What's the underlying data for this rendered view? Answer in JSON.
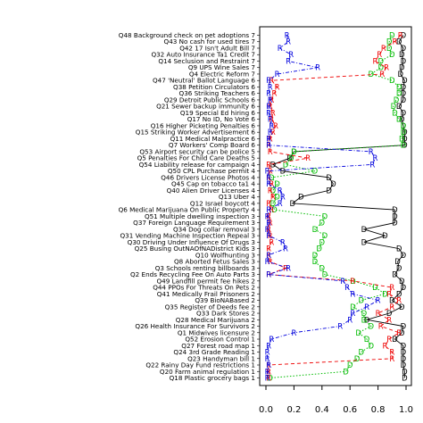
{
  "chart_data": {
    "type": "line",
    "title": "",
    "xlabel": "",
    "ylabel": "",
    "xlim": [
      0,
      1
    ],
    "x_ticks": [
      "0.0",
      "0.2",
      "0.4",
      "0.6",
      "0.8",
      "1.0"
    ],
    "x_tick_values": [
      0,
      0.2,
      0.4,
      0.6,
      0.8,
      1.0
    ],
    "grid": false,
    "legend": "none",
    "categories": [
      "Q48 Background check on pet adoptions 7",
      "Q43 No cash for used tires 7",
      "Q42 17 Isn't Adult Bill 7",
      "Q32 Auto Insurance Ta1 Credit 7",
      "Q14 Seclusion and Restraint 7",
      "Q9 UPS Wine Sales 7",
      "Q4 Electric Reform 7",
      "Q47 'Neutral' Ballot Language 6",
      "Q38 Petition Circulators 6",
      "Q36 Striking Teachers 6",
      "Q29 Detroit Public Schools 6",
      "Q21 Sewer backup immunity 6",
      "Q19 Special Ed hiring 6",
      "Q17 No ID, No Vote 6",
      "Q16 Higher Picketing Penalties 6",
      "Q15 Striking Worker Advertisement 6",
      "Q11 Medical Malpractice 6",
      "Q7 Workers' Comp Board 6",
      "Q53 Airport security can be police 5",
      "Q5 Penalties For Child Care Deaths 5",
      "Q54 Liability release for campaign 4",
      "Q50 CPL Purchase permit 4",
      "Q46 Drivers License Photos 4",
      "Q45 Cap on tobacco ta1 4",
      "Q40 Alien Driver Licenses 4",
      "Q13 Uber 4",
      "Q12 Israel boycott 4",
      "Q6 Medical Marijuana On Public Property 4",
      "Q51 Multiple dwelling inspection 3",
      "Q37 Foreign Language Requirement 3",
      "Q34 Dog collar removal 3",
      "Q31 Vending Machine Inspection Repeal 3",
      "Q30 Driving Under Influence Of Drugs 3",
      "Q25 Busing OutNAOfNADistrict Kids 3",
      "Q10 Wolfhunting 3",
      "Q8 Aborted Fetus Sales 3",
      "Q3 Schools renting billboards 3",
      "Q2 Ends Recycling Fee On Auto Parts 3",
      "Q49 Landfill permit fee hikes 2",
      "Q44 PPOs For Threats On Pets 2",
      "Q41 Medically Frail Prisoners 2",
      "Q39 BioNABased 2",
      "Q35 Register of Deeds fee 2",
      "Q33 Dark Stores 2",
      "Q28 Medical Marijuana 2",
      "Q26 Health Insurance For Survivors 2",
      "Q1 Midwives licensure 2",
      "Q52 Erosion Control 1",
      "Q27 Forest road map 1",
      "Q24 3rd Grade Reading 1",
      "Q23 Handyman bill 1",
      "Q22 Rainy Day Fund restrictions 1",
      "Q20 Farm animal regulation 1",
      "Q18 Plastic grocery bags 1"
    ],
    "series": [
      {
        "name": "",
        "marker": "D",
        "color": "#000000",
        "values": [
          0.98,
          0.95,
          0.98,
          0.97,
          0.98,
          0.97,
          0.96,
          0.99,
          0.98,
          0.98,
          0.98,
          0.95,
          0.98,
          0.97,
          0.98,
          0.99,
          0.99,
          0.99,
          0.2,
          0.17,
          0.05,
          0.12,
          0.45,
          0.48,
          0.45,
          0.25,
          0.19,
          0.92,
          0.92,
          0.92,
          0.7,
          0.85,
          0.7,
          0.95,
          0.98,
          0.94,
          0.95,
          0.92,
          0.97,
          0.98,
          0.95,
          0.9,
          0.97,
          0.88,
          0.72,
          0.98,
          0.97,
          0.92,
          0.98,
          0.98,
          0.98,
          0.98,
          0.99,
          0.99
        ]
      },
      {
        "name": "",
        "marker": "D",
        "color": "#00bb00",
        "values": [
          0.9,
          0.88,
          0.88,
          0.9,
          0.82,
          0.82,
          0.75,
          0.9,
          0.95,
          0.95,
          0.93,
          0.91,
          0.92,
          0.95,
          0.98,
          0.98,
          0.97,
          0.98,
          0.2,
          0.18,
          0.14,
          0.35,
          0.04,
          0.08,
          0.05,
          0.08,
          0.05,
          0.06,
          0.42,
          0.4,
          0.35,
          0.42,
          0.4,
          0.38,
          0.35,
          0.35,
          0.4,
          0.42,
          0.62,
          0.78,
          0.85,
          0.68,
          0.62,
          0.7,
          0.7,
          0.75,
          0.66,
          0.72,
          0.75,
          0.68,
          0.65,
          0.6,
          0.57,
          0.03
        ]
      },
      {
        "name": "",
        "marker": "R",
        "color": "#ee0000",
        "values": [
          0.96,
          0.92,
          0.84,
          0.81,
          0.78,
          0.86,
          0.83,
          0.04,
          0.08,
          0.06,
          0.04,
          0.03,
          0.05,
          0.04,
          0.07,
          0.05,
          0.03,
          0.02,
          0.03,
          0.3,
          0.02,
          0.03,
          0.02,
          0.04,
          0.03,
          0.05,
          0.02,
          0.04,
          0.02,
          0.03,
          0.02,
          0.03,
          0.04,
          0.02,
          0.02,
          0.03,
          0.14,
          0.02,
          0.62,
          0.9,
          0.88,
          0.95,
          0.9,
          0.8,
          0.88,
          0.82,
          0.95,
          0.88,
          0.85,
          0.9,
          0.9,
          0.02,
          0.02,
          0.02
        ]
      },
      {
        "name": "",
        "marker": "R",
        "color": "#0000dd",
        "values": [
          0.15,
          0.16,
          0.1,
          0.18,
          0.16,
          0.37,
          0.08,
          0.02,
          0.03,
          0.02,
          0.03,
          0.02,
          0.02,
          0.03,
          0.04,
          0.03,
          0.02,
          0.02,
          0.75,
          0.78,
          0.76,
          0.01,
          0.02,
          0.02,
          0.1,
          0.12,
          0.1,
          0.02,
          0.01,
          0.02,
          0.01,
          0.02,
          0.12,
          0.14,
          0.02,
          0.01,
          0.16,
          0.02,
          0.55,
          0.58,
          0.62,
          0.8,
          0.72,
          0.62,
          0.6,
          0.53,
          0.2,
          0.04,
          0.02,
          0.01,
          0.01,
          0.02,
          0.01,
          0.01
        ]
      }
    ]
  }
}
